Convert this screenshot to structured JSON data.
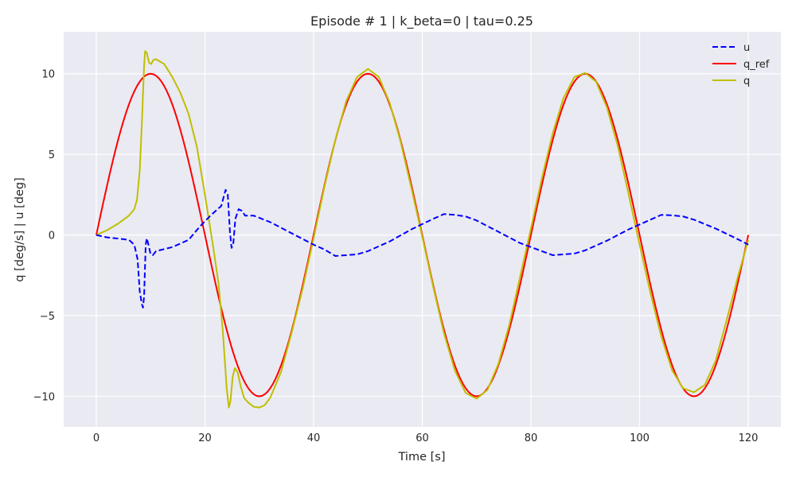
{
  "chart_data": {
    "type": "line",
    "title": "Episode # 1 | k_beta=0 | tau=0.25",
    "xlabel": "Time [s]",
    "ylabel": "q [deg/s]  |  u [deg]",
    "xlim": [
      -6,
      126
    ],
    "ylim": [
      -11.9,
      12.6
    ],
    "xticks": [
      0,
      20,
      40,
      60,
      80,
      100,
      120
    ],
    "xtick_labels": [
      "0",
      "20",
      "40",
      "60",
      "80",
      "100",
      "120"
    ],
    "yticks": [
      -10,
      -5,
      0,
      5,
      10
    ],
    "ytick_labels": [
      "−10",
      "−5",
      "0",
      "5",
      "10"
    ],
    "grid": true,
    "legend_position": "top-right",
    "series": [
      {
        "name": "u",
        "color": "#0000ff",
        "style": "dashed",
        "points": [
          [
            0,
            0
          ],
          [
            2,
            -0.15
          ],
          [
            4,
            -0.22
          ],
          [
            6,
            -0.3
          ],
          [
            7,
            -0.6
          ],
          [
            7.6,
            -1.5
          ],
          [
            8,
            -3.5
          ],
          [
            8.4,
            -4.3
          ],
          [
            8.6,
            -4.5
          ],
          [
            8.8,
            -3.8
          ],
          [
            9.1,
            -0.6
          ],
          [
            9.3,
            -0.2
          ],
          [
            9.6,
            -0.6
          ],
          [
            10,
            -1.2
          ],
          [
            10.4,
            -1.25
          ],
          [
            11,
            -1.0
          ],
          [
            14,
            -0.75
          ],
          [
            17,
            -0.3
          ],
          [
            19,
            0.5
          ],
          [
            21,
            1.2
          ],
          [
            23,
            1.8
          ],
          [
            23.8,
            2.8
          ],
          [
            24.2,
            2.5
          ],
          [
            24.6,
            0.2
          ],
          [
            24.9,
            -0.8
          ],
          [
            25.2,
            -0.6
          ],
          [
            25.6,
            1.0
          ],
          [
            26.2,
            1.6
          ],
          [
            26.8,
            1.5
          ],
          [
            27.4,
            1.2
          ],
          [
            29,
            1.2
          ],
          [
            32,
            0.8
          ],
          [
            36,
            0.1
          ],
          [
            40,
            -0.6
          ],
          [
            42,
            -0.9
          ],
          [
            44,
            -1.3
          ],
          [
            46,
            -1.25
          ],
          [
            48,
            -1.2
          ],
          [
            50,
            -1.0
          ],
          [
            54,
            -0.4
          ],
          [
            58,
            0.35
          ],
          [
            62,
            1.0
          ],
          [
            64,
            1.3
          ],
          [
            66,
            1.25
          ],
          [
            68,
            1.15
          ],
          [
            70,
            0.9
          ],
          [
            74,
            0.2
          ],
          [
            78,
            -0.5
          ],
          [
            82,
            -1.0
          ],
          [
            84,
            -1.25
          ],
          [
            86,
            -1.2
          ],
          [
            88,
            -1.15
          ],
          [
            90,
            -0.95
          ],
          [
            94,
            -0.35
          ],
          [
            98,
            0.35
          ],
          [
            102,
            0.95
          ],
          [
            104,
            1.25
          ],
          [
            106,
            1.22
          ],
          [
            108,
            1.15
          ],
          [
            110,
            0.95
          ],
          [
            114,
            0.4
          ],
          [
            118,
            -0.25
          ],
          [
            120,
            -0.6
          ]
        ]
      },
      {
        "name": "q_ref",
        "color": "#ff0000",
        "style": "solid",
        "period": 40,
        "amplitude": 10
      },
      {
        "name": "q",
        "color": "#bfbf00",
        "style": "solid",
        "points": [
          [
            0,
            0
          ],
          [
            2,
            0.3
          ],
          [
            4,
            0.7
          ],
          [
            6,
            1.2
          ],
          [
            7,
            1.6
          ],
          [
            7.5,
            2.2
          ],
          [
            8,
            4
          ],
          [
            8.4,
            7
          ],
          [
            8.8,
            10.5
          ],
          [
            9,
            11.4
          ],
          [
            9.3,
            11.3
          ],
          [
            9.7,
            10.7
          ],
          [
            10.1,
            10.6
          ],
          [
            10.5,
            10.85
          ],
          [
            11,
            10.9
          ],
          [
            12.5,
            10.6
          ],
          [
            14,
            9.8
          ],
          [
            15.5,
            8.8
          ],
          [
            17,
            7.5
          ],
          [
            18.5,
            5.5
          ],
          [
            20,
            2.5
          ],
          [
            21.5,
            -0.7
          ],
          [
            22.5,
            -3
          ],
          [
            23.3,
            -6
          ],
          [
            24,
            -9.5
          ],
          [
            24.4,
            -10.7
          ],
          [
            24.7,
            -10.3
          ],
          [
            25.1,
            -8.8
          ],
          [
            25.5,
            -8.25
          ],
          [
            26,
            -8.5
          ],
          [
            26.6,
            -9.4
          ],
          [
            27.2,
            -10.1
          ],
          [
            28,
            -10.4
          ],
          [
            29,
            -10.65
          ],
          [
            30,
            -10.7
          ],
          [
            31,
            -10.55
          ],
          [
            32,
            -10.1
          ],
          [
            34,
            -8.5
          ],
          [
            36,
            -6
          ],
          [
            38,
            -3.3
          ],
          [
            40,
            -0.2
          ],
          [
            42,
            3
          ],
          [
            44,
            5.9
          ],
          [
            46,
            8.3
          ],
          [
            48,
            9.8
          ],
          [
            50,
            10.3
          ],
          [
            52,
            9.8
          ],
          [
            54,
            8.2
          ],
          [
            56,
            5.8
          ],
          [
            58,
            2.9
          ],
          [
            60,
            -0.1
          ],
          [
            62,
            -3.2
          ],
          [
            64,
            -6.1
          ],
          [
            66,
            -8.4
          ],
          [
            68,
            -9.8
          ],
          [
            70,
            -10.15
          ],
          [
            72,
            -9.6
          ],
          [
            74,
            -8.0
          ],
          [
            76,
            -5.6
          ],
          [
            78,
            -2.6
          ],
          [
            80,
            0.4
          ],
          [
            82,
            3.5
          ],
          [
            84,
            6.3
          ],
          [
            86,
            8.5
          ],
          [
            88,
            9.8
          ],
          [
            90,
            10.05
          ],
          [
            92,
            9.5
          ],
          [
            94,
            7.9
          ],
          [
            96,
            5.5
          ],
          [
            98,
            2.5
          ],
          [
            100,
            -0.6
          ],
          [
            102,
            -3.6
          ],
          [
            104,
            -6.3
          ],
          [
            106,
            -8.4
          ],
          [
            108,
            -9.5
          ],
          [
            110,
            -9.75
          ],
          [
            112,
            -9.3
          ],
          [
            114,
            -7.8
          ],
          [
            116,
            -5.3
          ],
          [
            118,
            -2.7
          ],
          [
            120,
            -0.3
          ]
        ]
      }
    ]
  }
}
